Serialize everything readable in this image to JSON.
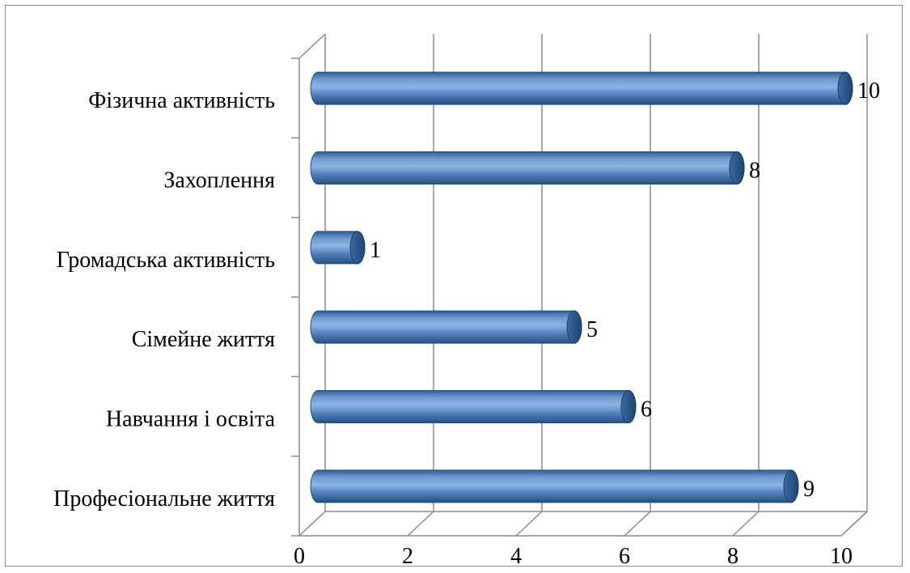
{
  "chart_data": {
    "type": "bar",
    "orientation": "horizontal",
    "style": "3d-cylinder",
    "categories": [
      "Професіональне життя",
      "Навчання і освіта",
      "Сімейне життя",
      "Громадська активність",
      "Захоплення",
      "Фізична активність"
    ],
    "values": [
      9,
      6,
      5,
      1,
      8,
      10
    ],
    "title": "",
    "xlabel": "",
    "ylabel": "",
    "xlim": [
      0,
      10
    ],
    "x_ticks": [
      "0",
      "2",
      "4",
      "6",
      "8",
      "10"
    ],
    "grid": true,
    "legend": "none",
    "data_labels": true,
    "colors": {
      "bar_main": "#4f81bd",
      "bar_light": "#8db3e2",
      "bar_dark": "#2f5d91",
      "grid": "#8c8c8c"
    }
  }
}
